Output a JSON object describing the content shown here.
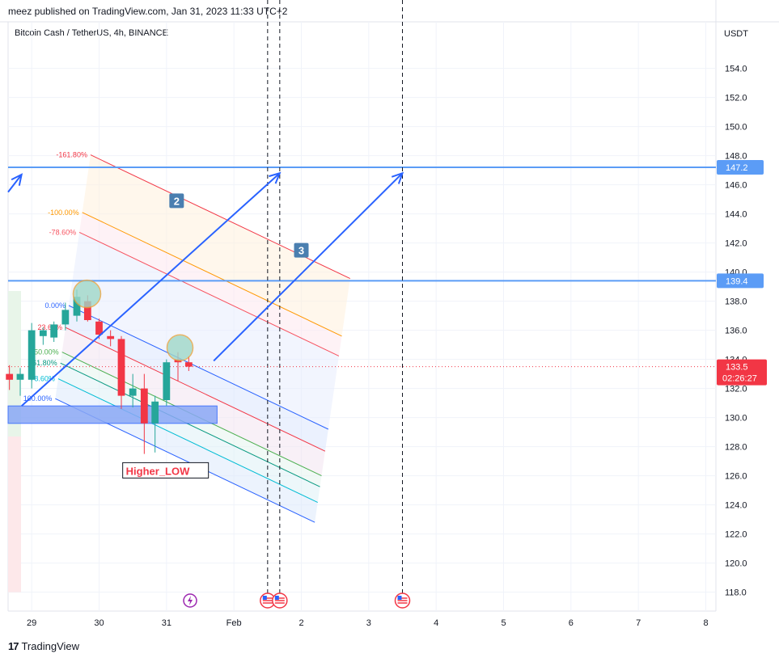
{
  "header": {
    "published": "meez published on TradingView.com, Jan 31, 2023 11:33 UTC+2",
    "symbol": "Bitcoin Cash / TetherUS, 4h, BINANCE",
    "brand": "TradingView",
    "brand_mark": "17"
  },
  "colors": {
    "bull": "#26a69a",
    "bear": "#f23645",
    "blue": "#2962ff",
    "hline": "#5b9cf6",
    "price_tag": "#f23645",
    "hline_tag": "#5b9cf6"
  },
  "chart_data": {
    "type": "candlestick",
    "currency": "USDT",
    "y_ticks": [
      118.0,
      120.0,
      122.0,
      124.0,
      126.0,
      128.0,
      130.0,
      132.0,
      134.0,
      136.0,
      138.0,
      140.0,
      142.0,
      144.0,
      146.0,
      148.0,
      150.0,
      152.0,
      154.0
    ],
    "y_tick_labels": [
      "118.0",
      "120.0",
      "122.0",
      "124.0",
      "126.0",
      "128.0",
      "130.0",
      "132.0",
      "134.0",
      "136.0",
      "138.0",
      "140.0",
      "142.0",
      "144.0",
      "146.0",
      "148.0",
      "150.0",
      "152.0",
      "154.0"
    ],
    "ylim": [
      116.7,
      157.2
    ],
    "x_ticks": [
      {
        "t": 0,
        "label": "29"
      },
      {
        "t": 1,
        "label": "30"
      },
      {
        "t": 2,
        "label": "31"
      },
      {
        "t": 3,
        "label": "Feb"
      },
      {
        "t": 4,
        "label": "2"
      },
      {
        "t": 5,
        "label": "3"
      },
      {
        "t": 6,
        "label": "4"
      },
      {
        "t": 7,
        "label": "5"
      },
      {
        "t": 8,
        "label": "6"
      },
      {
        "t": 9,
        "label": "7"
      },
      {
        "t": 10,
        "label": "8"
      }
    ],
    "xlim": [
      -0.35,
      10.15
    ],
    "candles": [
      {
        "t": -0.33,
        "o": 133.0,
        "h": 133.6,
        "l": 131.9,
        "c": 132.6
      },
      {
        "t": -0.17,
        "o": 132.6,
        "h": 133.4,
        "l": 131.5,
        "c": 133.0
      },
      {
        "t": 0.0,
        "o": 132.6,
        "h": 136.5,
        "l": 132.0,
        "c": 136.0
      },
      {
        "t": 0.17,
        "o": 135.6,
        "h": 136.2,
        "l": 135.0,
        "c": 136.0
      },
      {
        "t": 0.33,
        "o": 135.5,
        "h": 136.6,
        "l": 135.2,
        "c": 136.4
      },
      {
        "t": 0.5,
        "o": 136.4,
        "h": 137.9,
        "l": 136.0,
        "c": 137.4
      },
      {
        "t": 0.67,
        "o": 137.0,
        "h": 138.8,
        "l": 136.6,
        "c": 138.3
      },
      {
        "t": 0.83,
        "o": 138.0,
        "h": 138.4,
        "l": 136.6,
        "c": 136.7
      },
      {
        "t": 1.0,
        "o": 136.6,
        "h": 136.8,
        "l": 135.4,
        "c": 135.7
      },
      {
        "t": 1.17,
        "o": 135.6,
        "h": 136.0,
        "l": 134.9,
        "c": 135.4
      },
      {
        "t": 1.33,
        "o": 135.4,
        "h": 135.6,
        "l": 130.6,
        "c": 131.5
      },
      {
        "t": 1.5,
        "o": 131.5,
        "h": 133.0,
        "l": 130.7,
        "c": 132.0
      },
      {
        "t": 1.67,
        "o": 132.0,
        "h": 133.0,
        "l": 127.5,
        "c": 129.6
      },
      {
        "t": 1.83,
        "o": 129.6,
        "h": 131.5,
        "l": 127.6,
        "c": 131.1
      },
      {
        "t": 2.0,
        "o": 131.2,
        "h": 134.0,
        "l": 130.8,
        "c": 133.8
      },
      {
        "t": 2.17,
        "o": 134.0,
        "h": 134.5,
        "l": 132.5,
        "c": 133.8
      },
      {
        "t": 2.33,
        "o": 133.8,
        "h": 134.2,
        "l": 133.2,
        "c": 133.5
      }
    ],
    "current_price": 133.5,
    "price_label": "133.5",
    "countdown": "02:26:27",
    "horizontal_lines": [
      {
        "price": 147.2,
        "label": "147.2"
      },
      {
        "price": 139.4,
        "label": "139.4"
      }
    ],
    "vertical_dashed_times": [
      3.5,
      3.68,
      5.5
    ],
    "event_icons": [
      {
        "t": 2.35,
        "kind": "lightning"
      },
      {
        "t": 3.5,
        "kind": "us-flag"
      },
      {
        "t": 3.68,
        "kind": "us-flag"
      },
      {
        "t": 5.5,
        "kind": "us-flag"
      }
    ],
    "fib_labels": [
      {
        "text": "-161.80%"
      },
      {
        "text": "-100.00%"
      },
      {
        "text": "-78.60%"
      },
      {
        "text": "0.00%"
      },
      {
        "text": "23.60%"
      },
      {
        "text": "50.00%"
      },
      {
        "text": "61.80%"
      },
      {
        "text": "78.60%"
      },
      {
        "text": "100.00%"
      }
    ],
    "annotations": [
      {
        "text": "2"
      },
      {
        "text": "3"
      },
      {
        "text": "Higher_LOW"
      }
    ]
  }
}
